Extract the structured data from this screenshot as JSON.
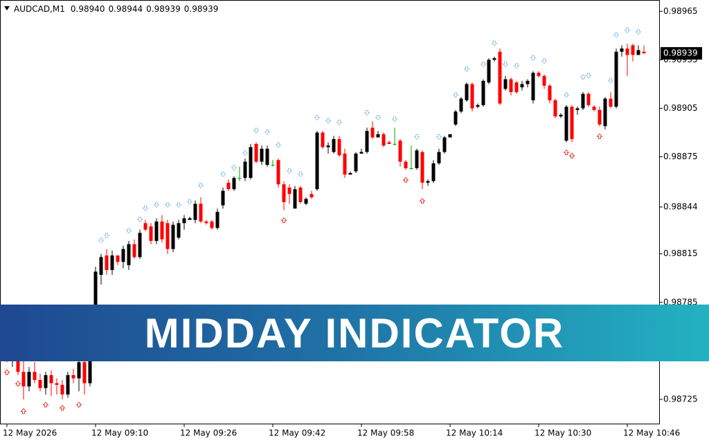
{
  "chart_data": {
    "type": "candlestick",
    "header": {
      "symbol": "AUDCAD,M1",
      "ohlc_labels": [
        "0.98940",
        "0.98944",
        "0.98939",
        "0.98939"
      ]
    },
    "banner": "MIDDAY INDICATOR",
    "last_price": {
      "value": 0.98939,
      "label": "0.98939"
    },
    "colors": {
      "up": "#000000",
      "down": "#ff0000",
      "doji": "#00a000",
      "upper_arrow": "#9cc8e8",
      "lower_arrow": "#e8403a"
    },
    "ylim": [
      0.9871,
      0.98972
    ],
    "yticks": [
      0.98965,
      0.98935,
      0.98905,
      0.98875,
      0.98844,
      0.98815,
      0.98785,
      0.98725
    ],
    "categories": [
      "12 May 2026",
      null,
      null,
      null,
      null,
      null,
      null,
      null,
      null,
      null,
      null,
      null,
      null,
      null,
      null,
      null,
      "12 May 09:10",
      null,
      null,
      null,
      null,
      null,
      null,
      null,
      null,
      null,
      null,
      null,
      null,
      null,
      null,
      null,
      "12 May 09:26",
      null,
      null,
      null,
      null,
      null,
      null,
      null,
      null,
      null,
      null,
      null,
      null,
      null,
      null,
      null,
      "12 May 09:42",
      null,
      null,
      null,
      null,
      null,
      null,
      null,
      null,
      null,
      null,
      null,
      null,
      null,
      null,
      null,
      "12 May 09:58",
      null,
      null,
      null,
      null,
      null,
      null,
      null,
      null,
      null,
      null,
      null,
      null,
      null,
      null,
      null,
      "12 May 10:14",
      null,
      null,
      null,
      null,
      null,
      null,
      null,
      null,
      null,
      null,
      null,
      null,
      null,
      null,
      null,
      "12 May 10:30",
      null,
      null,
      null,
      null,
      null,
      null,
      null,
      null,
      null,
      null,
      null,
      null,
      null,
      null,
      null,
      "12 May 10:46",
      null,
      null,
      null
    ],
    "open": [
      0.98762,
      0.98752,
      0.98755,
      0.98742,
      0.98733,
      0.98742,
      0.98737,
      0.98732,
      0.9874,
      0.98735,
      0.98734,
      0.98728,
      0.9874,
      0.98738,
      0.98748,
      0.98735,
      0.98758,
      0.98802,
      0.98814,
      0.98805,
      0.98814,
      0.9881,
      0.98808,
      0.98821,
      0.98813,
      0.98834,
      0.98832,
      0.98823,
      0.98835,
      0.98834,
      0.98818,
      0.98825,
      0.98834,
      0.98836,
      0.98836,
      0.98846,
      0.98835,
      0.98835,
      0.98831,
      0.98845,
      0.98859,
      0.98855,
      0.98862,
      0.98862,
      0.98862,
      0.98883,
      0.98872,
      0.9887,
      0.9887,
      0.98873,
      0.98858,
      0.98856,
      0.98843,
      0.98856,
      0.98846,
      0.98852,
      0.98855,
      0.9889,
      0.98881,
      0.98878,
      0.98886,
      0.98877,
      0.98864,
      0.98866,
      0.98877,
      0.98878,
      0.98893,
      0.98887,
      0.98889,
      0.98884,
      0.98883,
      0.98885,
      0.98872,
      0.98868,
      0.98868,
      0.98878,
      0.98859,
      0.9886,
      0.98871,
      0.98878,
      0.98887,
      0.98895,
      0.98903,
      0.9891,
      0.9892,
      0.98906,
      0.98907,
      0.98921,
      0.98935,
      0.9894,
      0.98917,
      0.98923,
      0.98921,
      0.98918,
      0.9892,
      0.9891,
      0.98927,
      0.98925,
      0.98919,
      0.9891,
      0.989,
      0.98885,
      0.98906,
      0.98904,
      0.98905,
      0.98914,
      0.98906,
      0.98904,
      0.98894,
      0.98911,
      0.98906,
      0.9894,
      0.98942,
      0.98944,
      0.98938,
      0.9894
    ],
    "high": [
      0.98765,
      0.98758,
      0.98757,
      0.9875,
      0.98745,
      0.98748,
      0.98741,
      0.98742,
      0.98743,
      0.98738,
      0.98737,
      0.98742,
      0.98744,
      0.98752,
      0.98752,
      0.9876,
      0.98807,
      0.98815,
      0.98818,
      0.98817,
      0.98814,
      0.9882,
      0.98823,
      0.98824,
      0.9883,
      0.98836,
      0.98834,
      0.98837,
      0.98839,
      0.98836,
      0.98835,
      0.98836,
      0.98839,
      0.98838,
      0.98848,
      0.9885,
      0.98836,
      0.98836,
      0.98843,
      0.98856,
      0.98861,
      0.98863,
      0.98869,
      0.98874,
      0.98883,
      0.98884,
      0.98882,
      0.98882,
      0.98873,
      0.98874,
      0.9886,
      0.98858,
      0.98857,
      0.98857,
      0.9885,
      0.98854,
      0.98891,
      0.98891,
      0.98884,
      0.98888,
      0.98888,
      0.9888,
      0.98866,
      0.98878,
      0.9888,
      0.98893,
      0.98897,
      0.98891,
      0.9889,
      0.98885,
      0.98893,
      0.98886,
      0.98873,
      0.98882,
      0.9888,
      0.98879,
      0.98861,
      0.98873,
      0.9888,
      0.98888,
      0.98889,
      0.98904,
      0.98912,
      0.98921,
      0.98921,
      0.98908,
      0.98923,
      0.98936,
      0.98937,
      0.98942,
      0.98925,
      0.98924,
      0.98922,
      0.98922,
      0.98923,
      0.98928,
      0.98928,
      0.98926,
      0.9892,
      0.98911,
      0.98902,
      0.98907,
      0.98907,
      0.98906,
      0.98915,
      0.98915,
      0.98907,
      0.98906,
      0.98912,
      0.98915,
      0.98942,
      0.98944,
      0.98945,
      0.98945,
      0.98944,
      0.98944
    ],
    "low": [
      0.98748,
      0.98745,
      0.9874,
      0.98725,
      0.9873,
      0.98735,
      0.9873,
      0.98728,
      0.98727,
      0.98728,
      0.98725,
      0.98726,
      0.98735,
      0.9873,
      0.98728,
      0.98733,
      0.98755,
      0.98796,
      0.98802,
      0.98802,
      0.98808,
      0.98806,
      0.98805,
      0.98812,
      0.98812,
      0.98829,
      0.98821,
      0.98821,
      0.98822,
      0.98815,
      0.98816,
      0.98824,
      0.9883,
      0.98836,
      0.98834,
      0.98834,
      0.98833,
      0.9883,
      0.9883,
      0.98843,
      0.98854,
      0.98854,
      0.9886,
      0.9886,
      0.98861,
      0.98871,
      0.9887,
      0.98869,
      0.98869,
      0.98856,
      0.98842,
      0.98846,
      0.98843,
      0.98846,
      0.98845,
      0.98849,
      0.98854,
      0.9888,
      0.98877,
      0.98877,
      0.98875,
      0.98862,
      0.98864,
      0.98865,
      0.98877,
      0.98877,
      0.98886,
      0.98887,
      0.98881,
      0.98883,
      0.98882,
      0.98869,
      0.98867,
      0.98867,
      0.98867,
      0.98855,
      0.98857,
      0.98859,
      0.9887,
      0.98877,
      0.98887,
      0.98894,
      0.98902,
      0.98909,
      0.98903,
      0.98905,
      0.98906,
      0.9892,
      0.98934,
      0.98907,
      0.98916,
      0.98913,
      0.98914,
      0.98916,
      0.98918,
      0.98908,
      0.98924,
      0.98917,
      0.98908,
      0.98899,
      0.98899,
      0.98884,
      0.98884,
      0.98901,
      0.98904,
      0.98906,
      0.98903,
      0.98894,
      0.98892,
      0.98905,
      0.98905,
      0.98937,
      0.98925,
      0.98934,
      0.98938,
      0.98939
    ],
    "close": [
      0.98752,
      0.98755,
      0.98742,
      0.98733,
      0.98742,
      0.98737,
      0.98732,
      0.9874,
      0.98735,
      0.98734,
      0.98728,
      0.9874,
      0.98738,
      0.98748,
      0.98735,
      0.98758,
      0.98804,
      0.98813,
      0.98805,
      0.98814,
      0.9881,
      0.98818,
      0.98821,
      0.98813,
      0.98828,
      0.9883,
      0.98823,
      0.98835,
      0.98824,
      0.98818,
      0.98833,
      0.98834,
      0.98837,
      0.98837,
      0.98846,
      0.98835,
      0.98834,
      0.98831,
      0.98841,
      0.98854,
      0.98855,
      0.98862,
      0.98862,
      0.98872,
      0.98881,
      0.98872,
      0.9888,
      0.9888,
      0.9887,
      0.98858,
      0.98847,
      0.98852,
      0.98855,
      0.98847,
      0.98849,
      0.9885,
      0.9889,
      0.98881,
      0.98882,
      0.98886,
      0.98876,
      0.98864,
      0.98865,
      0.98877,
      0.98878,
      0.98891,
      0.98887,
      0.98889,
      0.98882,
      0.98883,
      0.98883,
      0.98872,
      0.98868,
      0.98868,
      0.98879,
      0.98859,
      0.9886,
      0.98871,
      0.98878,
      0.98887,
      0.98889,
      0.98903,
      0.98911,
      0.9892,
      0.98905,
      0.98907,
      0.98922,
      0.98935,
      0.98936,
      0.98908,
      0.98923,
      0.98915,
      0.98915,
      0.9892,
      0.98922,
      0.98927,
      0.98925,
      0.98919,
      0.9891,
      0.989,
      0.98901,
      0.98906,
      0.98886,
      0.98905,
      0.98914,
      0.98907,
      0.98904,
      0.98895,
      0.98911,
      0.98906,
      0.9894,
      0.98942,
      0.98938,
      0.98938,
      0.98941,
      0.98939
    ],
    "upper_arrows": [
      [
        17,
        0.98823
      ],
      [
        18,
        0.98826
      ],
      [
        22,
        0.98829
      ],
      [
        24,
        0.98836
      ],
      [
        25,
        0.98843
      ],
      [
        27,
        0.98845
      ],
      [
        29,
        0.98845
      ],
      [
        31,
        0.98845
      ],
      [
        33,
        0.98847
      ],
      [
        35,
        0.98857
      ],
      [
        39,
        0.98864
      ],
      [
        41,
        0.98868
      ],
      [
        43,
        0.98877
      ],
      [
        45,
        0.98891
      ],
      [
        47,
        0.9889
      ],
      [
        49,
        0.98882
      ],
      [
        51,
        0.98866
      ],
      [
        53,
        0.98864
      ],
      [
        56,
        0.98899
      ],
      [
        58,
        0.98897
      ],
      [
        60,
        0.98896
      ],
      [
        65,
        0.98902
      ],
      [
        67,
        0.98899
      ],
      [
        70,
        0.98898
      ],
      [
        74,
        0.98887
      ],
      [
        78,
        0.98887
      ],
      [
        81,
        0.98913
      ],
      [
        83,
        0.98929
      ],
      [
        86,
        0.98932
      ],
      [
        88,
        0.98945
      ],
      [
        90,
        0.98932
      ],
      [
        92,
        0.98931
      ],
      [
        95,
        0.98936
      ],
      [
        97,
        0.98934
      ],
      [
        101,
        0.98913
      ],
      [
        104,
        0.98924
      ],
      [
        105,
        0.98925
      ],
      [
        109,
        0.98922
      ],
      [
        110,
        0.9895
      ],
      [
        112,
        0.98953
      ],
      [
        114,
        0.98952
      ]
    ],
    "lower_arrows": [
      [
        0,
        0.98742
      ],
      [
        2,
        0.98735
      ],
      [
        3,
        0.98718
      ],
      [
        7,
        0.98722
      ],
      [
        10,
        0.9872
      ],
      [
        13,
        0.98722
      ],
      [
        50,
        0.98836
      ],
      [
        72,
        0.98861
      ],
      [
        75,
        0.98848
      ],
      [
        101,
        0.98878
      ],
      [
        102,
        0.98876
      ],
      [
        107,
        0.98888
      ]
    ]
  }
}
